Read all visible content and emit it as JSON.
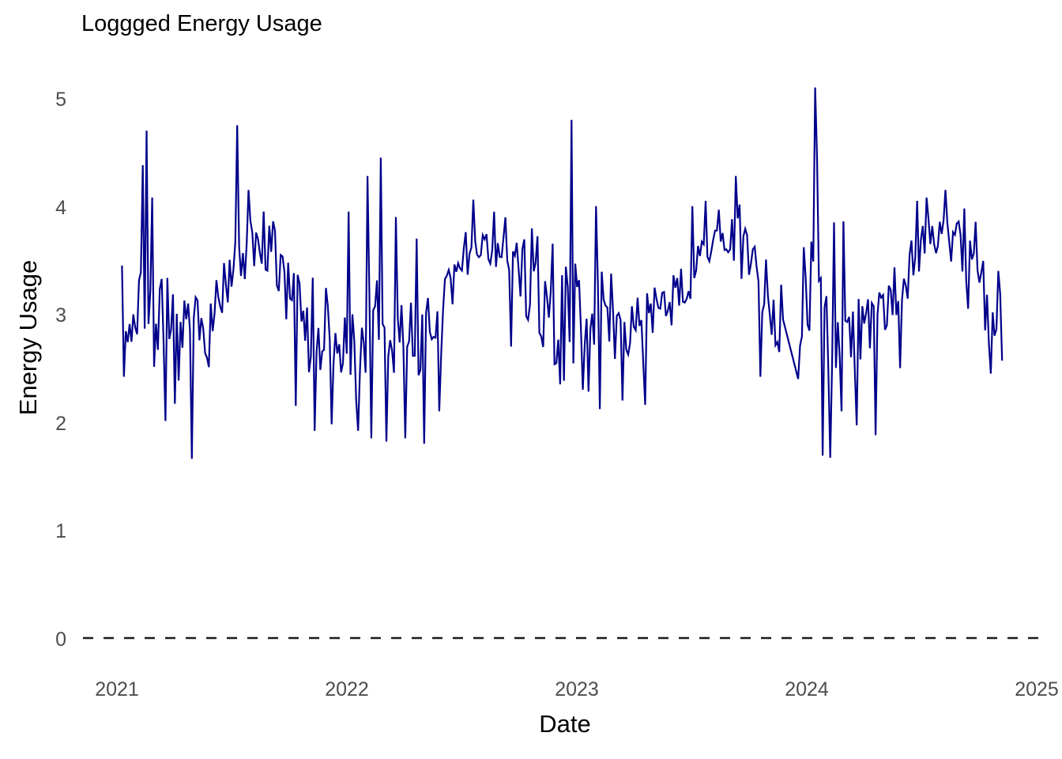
{
  "page": {
    "background": "#ffffff"
  },
  "chart_data": {
    "type": "line",
    "title": "Loggged Energy Usage",
    "xlabel": "Date",
    "ylabel": "Energy Usage",
    "x_ticks": [
      "2021",
      "2022",
      "2023",
      "2024",
      "2025"
    ],
    "y_ticks": [
      "0",
      "1",
      "2",
      "3",
      "4",
      "5"
    ],
    "xlim": [
      2020.85,
      2025.03
    ],
    "ylim": [
      0,
      5.2
    ],
    "grid": "off",
    "legend": "none",
    "axis_lines": "none",
    "zero_baseline": {
      "value": 0,
      "style": "dashed",
      "color": "#1a1a1a",
      "dash": [
        13,
        13
      ],
      "width": 2.4
    },
    "tick_label_color": "#4d4d4d",
    "axis_title_color": "#000000",
    "series": [
      {
        "name": "Energy Usage",
        "color": "#00008b",
        "line_width": 2.2,
        "sampling": {
          "start": 2021.022,
          "end": 2024.857,
          "step_days": 3
        },
        "seasonal_anchor_points": [
          [
            2021.022,
            3.05
          ],
          [
            2021.06,
            2.9
          ],
          [
            2021.1,
            3.2
          ],
          [
            2021.14,
            3.05
          ],
          [
            2021.2,
            2.85
          ],
          [
            2021.3,
            2.78
          ],
          [
            2021.38,
            2.85
          ],
          [
            2021.46,
            3.15
          ],
          [
            2021.52,
            3.4
          ],
          [
            2021.6,
            3.55
          ],
          [
            2021.68,
            3.5
          ],
          [
            2021.75,
            3.35
          ],
          [
            2021.83,
            2.95
          ],
          [
            2021.92,
            2.65
          ],
          [
            2022.0,
            2.62
          ],
          [
            2022.1,
            2.75
          ],
          [
            2022.2,
            2.85
          ],
          [
            2022.28,
            2.8
          ],
          [
            2022.36,
            2.75
          ],
          [
            2022.44,
            3.1
          ],
          [
            2022.52,
            3.5
          ],
          [
            2022.6,
            3.7
          ],
          [
            2022.66,
            3.65
          ],
          [
            2022.74,
            3.45
          ],
          [
            2022.82,
            3.2
          ],
          [
            2022.9,
            3.0
          ],
          [
            2022.98,
            2.95
          ],
          [
            2023.06,
            3.0
          ],
          [
            2023.15,
            2.95
          ],
          [
            2023.25,
            2.9
          ],
          [
            2023.35,
            2.95
          ],
          [
            2023.45,
            3.15
          ],
          [
            2023.54,
            3.55
          ],
          [
            2023.62,
            3.75
          ],
          [
            2023.7,
            3.65
          ],
          [
            2023.78,
            3.35
          ],
          [
            2023.86,
            3.05
          ],
          [
            2023.93,
            2.8
          ],
          [
            2023.97,
            2.55
          ],
          [
            2024.03,
            3.3
          ],
          [
            2024.1,
            2.9
          ],
          [
            2024.18,
            3.0
          ],
          [
            2024.26,
            3.0
          ],
          [
            2024.34,
            3.1
          ],
          [
            2024.42,
            3.3
          ],
          [
            2024.5,
            3.6
          ],
          [
            2024.58,
            3.8
          ],
          [
            2024.66,
            3.75
          ],
          [
            2024.72,
            3.6
          ],
          [
            2024.79,
            3.3
          ],
          [
            2024.857,
            2.65
          ]
        ],
        "extreme_points": [
          [
            2021.022,
            3.45
          ],
          [
            2021.032,
            2.42
          ],
          [
            2021.11,
            4.38
          ],
          [
            2021.13,
            4.7
          ],
          [
            2021.155,
            4.08
          ],
          [
            2021.21,
            2.01
          ],
          [
            2021.25,
            2.17
          ],
          [
            2021.326,
            1.66
          ],
          [
            2021.52,
            4.75
          ],
          [
            2021.574,
            4.15
          ],
          [
            2021.64,
            3.95
          ],
          [
            2021.78,
            2.15
          ],
          [
            2021.86,
            1.92
          ],
          [
            2021.93,
            1.98
          ],
          [
            2022.01,
            3.95
          ],
          [
            2022.05,
            1.92
          ],
          [
            2022.09,
            4.28
          ],
          [
            2022.11,
            1.85
          ],
          [
            2022.148,
            4.45
          ],
          [
            2022.175,
            1.82
          ],
          [
            2022.21,
            3.9
          ],
          [
            2022.25,
            1.85
          ],
          [
            2022.3,
            3.7
          ],
          [
            2022.34,
            1.8
          ],
          [
            2022.4,
            2.1
          ],
          [
            2022.55,
            4.06
          ],
          [
            2022.71,
            2.7
          ],
          [
            2022.93,
            2.35
          ],
          [
            2022.975,
            4.8
          ],
          [
            2023.03,
            2.3
          ],
          [
            2023.08,
            4.0
          ],
          [
            2023.1,
            2.12
          ],
          [
            2023.2,
            2.2
          ],
          [
            2023.3,
            2.16
          ],
          [
            2023.5,
            4.0
          ],
          [
            2023.56,
            4.05
          ],
          [
            2023.69,
            4.28
          ],
          [
            2023.8,
            2.42
          ],
          [
            2023.898,
            2.95
          ],
          [
            2023.915,
            1.99
          ],
          [
            2023.965,
            2.4
          ],
          [
            2023.99,
            3.62
          ],
          [
            2024.034,
            5.1
          ],
          [
            2024.048,
            4.45
          ],
          [
            2024.072,
            1.69
          ],
          [
            2024.1,
            1.67
          ],
          [
            2024.12,
            3.85
          ],
          [
            2024.15,
            2.1
          ],
          [
            2024.16,
            3.86
          ],
          [
            2024.22,
            1.97
          ],
          [
            2024.3,
            1.88
          ],
          [
            2024.41,
            2.5
          ],
          [
            2024.48,
            4.05
          ],
          [
            2024.52,
            4.08
          ],
          [
            2024.6,
            4.15
          ],
          [
            2024.7,
            3.05
          ],
          [
            2024.8,
            2.45
          ],
          [
            2024.83,
            3.4
          ],
          [
            2024.857,
            2.52
          ]
        ],
        "noise": {
          "seed": 7,
          "sd_summer": 0.16,
          "sd_winter": 0.3
        },
        "gaps": [
          [
            2023.902,
            2023.96
          ]
        ]
      }
    ]
  }
}
